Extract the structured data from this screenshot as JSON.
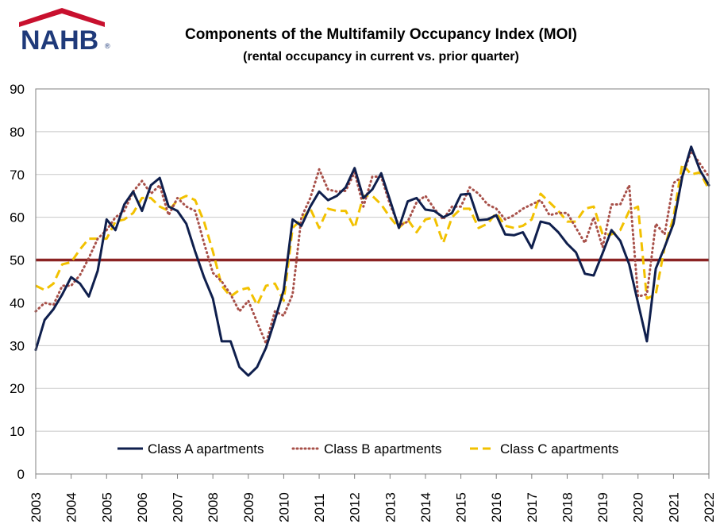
{
  "logo": {
    "text": "NAHB",
    "registered": "®"
  },
  "colors": {
    "logo_blue": "#1f3a7a",
    "logo_red": "#c8102e",
    "class_a": "#0f1f4d",
    "class_b": "#a8514a",
    "class_c": "#f2c100",
    "threshold": "#8b2323",
    "grid": "#c8c8c8"
  },
  "chart_data": {
    "type": "line",
    "title": "Components of the Multifamily Occupancy Index (MOI)",
    "subtitle": "(rental occupancy in current vs. prior quarter)",
    "xlabel": "",
    "ylabel": "",
    "ylim": [
      0,
      90
    ],
    "yticks": [
      0,
      10,
      20,
      30,
      40,
      50,
      60,
      70,
      80,
      90
    ],
    "grid": true,
    "legend_position": "bottom",
    "xlim": [
      "2003-Q1",
      "2022-Q1"
    ],
    "year_labels": [
      "2003",
      "2004",
      "2005",
      "2006",
      "2007",
      "2008",
      "2009",
      "2010",
      "2011",
      "2012",
      "2013",
      "2014",
      "2015",
      "2016",
      "2017",
      "2018",
      "2019",
      "2020",
      "2021",
      "2022"
    ],
    "reference_line": {
      "value": 50
    },
    "x": [
      "2003-Q1",
      "2003-Q2",
      "2003-Q3",
      "2003-Q4",
      "2004-Q1",
      "2004-Q2",
      "2004-Q3",
      "2004-Q4",
      "2005-Q1",
      "2005-Q2",
      "2005-Q3",
      "2005-Q4",
      "2006-Q1",
      "2006-Q2",
      "2006-Q3",
      "2006-Q4",
      "2007-Q1",
      "2007-Q2",
      "2007-Q3",
      "2007-Q4",
      "2008-Q1",
      "2008-Q2",
      "2008-Q3",
      "2008-Q4",
      "2009-Q1",
      "2009-Q2",
      "2009-Q3",
      "2009-Q4",
      "2010-Q1",
      "2010-Q2",
      "2010-Q3",
      "2010-Q4",
      "2011-Q1",
      "2011-Q2",
      "2011-Q3",
      "2011-Q4",
      "2012-Q1",
      "2012-Q2",
      "2012-Q3",
      "2012-Q4",
      "2013-Q1",
      "2013-Q2",
      "2013-Q3",
      "2013-Q4",
      "2014-Q1",
      "2014-Q2",
      "2014-Q3",
      "2014-Q4",
      "2015-Q1",
      "2015-Q2",
      "2015-Q3",
      "2015-Q4",
      "2016-Q1",
      "2016-Q2",
      "2016-Q3",
      "2016-Q4",
      "2017-Q1",
      "2017-Q2",
      "2017-Q3",
      "2017-Q4",
      "2018-Q1",
      "2018-Q2",
      "2018-Q3",
      "2018-Q4",
      "2019-Q1",
      "2019-Q2",
      "2019-Q3",
      "2019-Q4",
      "2020-Q1",
      "2020-Q2",
      "2020-Q3",
      "2020-Q4",
      "2021-Q1",
      "2021-Q2",
      "2021-Q3",
      "2021-Q4",
      "2022-Q1"
    ],
    "series": [
      {
        "name": "Class A apartments",
        "style": "solid",
        "values": [
          29,
          36,
          38.5,
          42,
          46,
          44.5,
          41.5,
          47.5,
          59.5,
          57,
          63,
          66,
          61.5,
          67.5,
          69.2,
          62.5,
          61.5,
          58.5,
          52,
          46,
          41,
          31,
          31,
          25,
          23,
          25,
          29.5,
          36,
          43,
          59.5,
          58,
          62.5,
          66,
          64,
          65,
          67,
          71.5,
          64.5,
          66.5,
          70.3,
          64,
          57.5,
          63.7,
          64.5,
          61.8,
          61.5,
          60,
          61,
          65.3,
          65.5,
          59.3,
          59.5,
          60.5,
          56,
          55.8,
          56.5,
          52.8,
          59,
          58.5,
          56.5,
          53.8,
          51.8,
          46.8,
          46.4,
          51.6,
          57,
          54.5,
          49,
          40,
          31,
          48,
          53,
          58.5,
          69.5,
          76.5,
          71,
          67.5
        ]
      },
      {
        "name": "Class B apartments",
        "style": "dotted",
        "values": [
          38,
          40,
          39.5,
          44,
          44,
          46.5,
          50.5,
          55,
          57,
          60,
          61.5,
          66,
          68.5,
          65.5,
          67.5,
          60.5,
          64.5,
          62.5,
          61.5,
          54,
          47,
          45,
          42,
          38,
          40.5,
          35.5,
          30.5,
          38,
          37,
          42,
          60,
          64.5,
          71.2,
          66.5,
          66,
          66.2,
          70.5,
          62.5,
          69.5,
          69.5,
          63,
          58,
          59,
          63.5,
          65,
          62,
          59.5,
          62.5,
          62.5,
          67,
          65.5,
          63,
          62,
          59.5,
          60.5,
          62,
          63,
          64,
          60.5,
          61,
          61,
          57.5,
          54,
          60,
          53,
          63,
          63,
          67.5,
          41.5,
          42,
          58.5,
          56,
          68,
          69.5,
          75.5,
          72.5,
          69.5
        ]
      },
      {
        "name": "Class C apartments",
        "style": "dashed",
        "values": [
          44,
          43,
          44.5,
          49,
          49.5,
          52.5,
          55,
          55,
          55,
          59,
          59.5,
          61,
          64.5,
          64.5,
          62.5,
          61.5,
          64,
          65,
          64,
          59,
          52,
          44,
          41.5,
          43,
          43.5,
          39.5,
          44,
          44.5,
          40.5,
          57.5,
          59.5,
          62,
          57.5,
          62,
          61.5,
          61.5,
          57.5,
          65,
          65,
          63,
          60,
          57.5,
          59.5,
          56.5,
          59.5,
          60,
          54,
          60,
          62,
          62,
          57.5,
          58.5,
          61,
          58,
          57.5,
          58,
          59.5,
          65.5,
          63.5,
          61.5,
          59,
          59,
          62,
          62.5,
          56,
          56,
          57,
          61.5,
          62.5,
          41,
          42,
          53,
          60,
          72.5,
          70,
          70.5,
          66.5
        ]
      }
    ]
  }
}
